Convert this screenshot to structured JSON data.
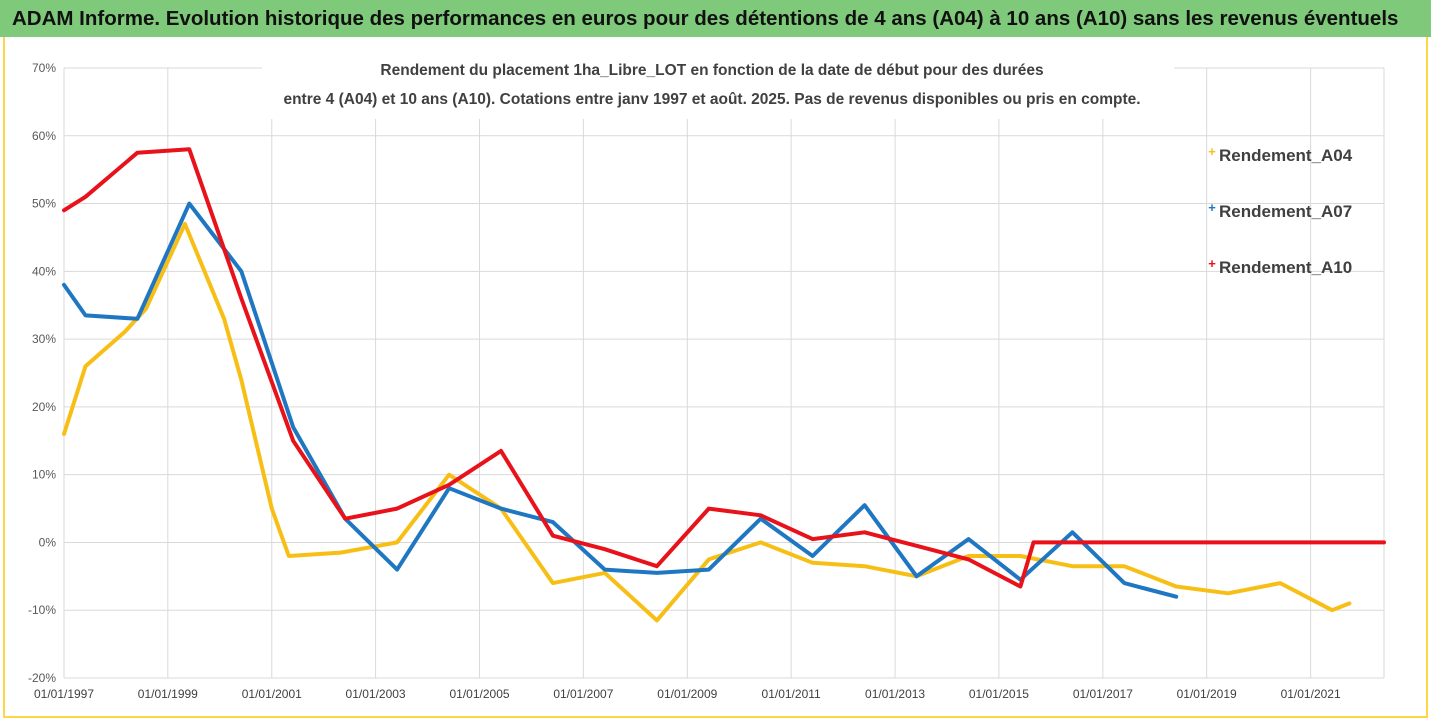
{
  "banner": {
    "title": "ADAM Informe. Evolution historique des performances en euros pour des détentions de 4 ans (A04) à 10 ans (A10) sans les revenus éventuels"
  },
  "colors": {
    "banner_bg": "#7fc97a",
    "frame": "#ffd54a",
    "A04": "#f7bf16",
    "A07": "#1f77c2",
    "A10": "#e8121a",
    "grid": "#d9d9d9"
  },
  "chart_data": {
    "type": "line",
    "title_line1": "Rendement du placement 1ha_Libre_LOT en fonction de la date de début pour des durées",
    "title_line2": "entre 4 (A04) et 10 ans (A10). Cotations entre janv 1997 et août. 2025. Pas de revenus disponibles ou pris en compte.",
    "xlabel": "",
    "ylabel": "",
    "ylim": [
      -20,
      70
    ],
    "y_ticks": [
      "70%",
      "60%",
      "50%",
      "40%",
      "30%",
      "20%",
      "10%",
      "0%",
      "-10%",
      "-20%"
    ],
    "xlim": [
      "1997-01-01",
      "2022-06-01"
    ],
    "x_ticks": [
      "01/01/1997",
      "01/01/1999",
      "01/01/2001",
      "01/01/2003",
      "01/01/2005",
      "01/01/2007",
      "01/01/2009",
      "01/01/2011",
      "01/01/2013",
      "01/01/2015",
      "01/01/2017",
      "01/01/2019",
      "01/01/2021"
    ],
    "grid": true,
    "legend_position": "right",
    "series": [
      {
        "name": "Rendement_A04",
        "points": [
          [
            "1997-01-01",
            16
          ],
          [
            "1997-06-01",
            26
          ],
          [
            "1998-03-01",
            31
          ],
          [
            "1998-08-01",
            34.5
          ],
          [
            "1999-05-01",
            47
          ],
          [
            "2000-02-01",
            33
          ],
          [
            "2000-06-01",
            24
          ],
          [
            "2001-01-01",
            5
          ],
          [
            "2001-05-01",
            -2
          ],
          [
            "2002-05-01",
            -1.5
          ],
          [
            "2003-06-01",
            0
          ],
          [
            "2004-06-01",
            10
          ],
          [
            "2005-06-01",
            5
          ],
          [
            "2006-06-01",
            -6
          ],
          [
            "2007-06-01",
            -4.5
          ],
          [
            "2008-06-01",
            -11.5
          ],
          [
            "2009-06-01",
            -2.5
          ],
          [
            "2010-06-01",
            0
          ],
          [
            "2011-06-01",
            -3
          ],
          [
            "2012-06-01",
            -3.5
          ],
          [
            "2013-06-01",
            -5
          ],
          [
            "2014-06-01",
            -2
          ],
          [
            "2015-06-01",
            -2
          ],
          [
            "2016-06-01",
            -3.5
          ],
          [
            "2017-06-01",
            -3.5
          ],
          [
            "2018-06-01",
            -6.5
          ],
          [
            "2019-06-01",
            -7.5
          ],
          [
            "2020-06-01",
            -6
          ],
          [
            "2021-06-01",
            -10
          ],
          [
            "2021-10-01",
            -9
          ]
        ]
      },
      {
        "name": "Rendement_A07",
        "points": [
          [
            "1997-01-01",
            38
          ],
          [
            "1997-06-01",
            33.5
          ],
          [
            "1998-06-01",
            33
          ],
          [
            "1999-06-01",
            50
          ],
          [
            "2000-06-01",
            40
          ],
          [
            "2001-06-01",
            17
          ],
          [
            "2002-06-01",
            3.5
          ],
          [
            "2003-06-01",
            -4
          ],
          [
            "2004-06-01",
            8
          ],
          [
            "2005-06-01",
            5
          ],
          [
            "2006-06-01",
            3
          ],
          [
            "2007-06-01",
            -4
          ],
          [
            "2008-06-01",
            -4.5
          ],
          [
            "2009-06-01",
            -4
          ],
          [
            "2010-06-01",
            3.5
          ],
          [
            "2011-06-01",
            -2
          ],
          [
            "2012-06-01",
            5.5
          ],
          [
            "2013-06-01",
            -5
          ],
          [
            "2014-06-01",
            0.5
          ],
          [
            "2015-06-01",
            -5.5
          ],
          [
            "2016-06-01",
            1.5
          ],
          [
            "2017-06-01",
            -6
          ],
          [
            "2018-06-01",
            -8
          ]
        ]
      },
      {
        "name": "Rendement_A10",
        "points": [
          [
            "1997-01-01",
            49
          ],
          [
            "1997-06-01",
            51
          ],
          [
            "1998-06-01",
            57.5
          ],
          [
            "1999-06-01",
            58
          ],
          [
            "2000-06-01",
            36
          ],
          [
            "2001-06-01",
            15
          ],
          [
            "2002-06-01",
            3.5
          ],
          [
            "2003-06-01",
            5
          ],
          [
            "2004-06-01",
            8.5
          ],
          [
            "2005-06-01",
            13.5
          ],
          [
            "2006-06-01",
            1
          ],
          [
            "2007-06-01",
            -1
          ],
          [
            "2008-06-01",
            -3.5
          ],
          [
            "2009-06-01",
            5
          ],
          [
            "2010-06-01",
            4
          ],
          [
            "2011-06-01",
            0.5
          ],
          [
            "2012-06-01",
            1.5
          ],
          [
            "2013-06-01",
            -0.5
          ],
          [
            "2014-06-01",
            -2.5
          ],
          [
            "2015-06-01",
            -6.5
          ],
          [
            "2015-09-01",
            0
          ],
          [
            "2022-06-01",
            0
          ]
        ]
      }
    ]
  }
}
